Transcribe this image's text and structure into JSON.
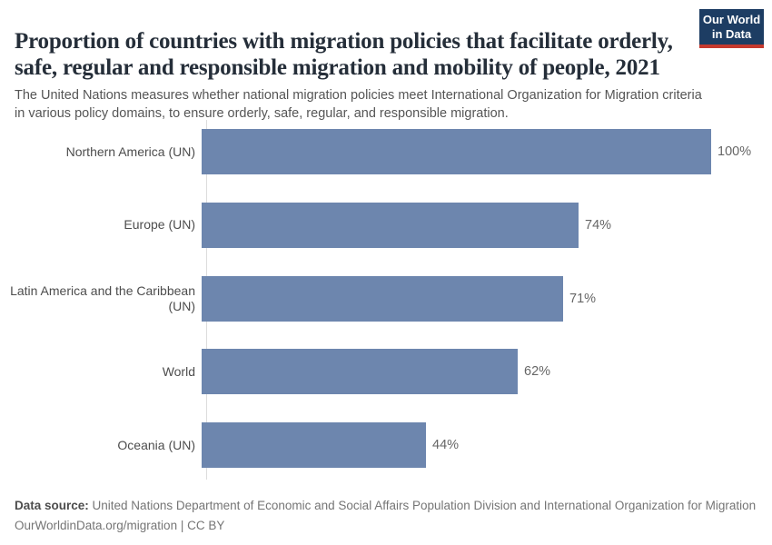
{
  "header": {
    "title": "Proportion of countries with migration policies that facilitate orderly, safe, regular and responsible migration and mobility of people, 2021",
    "subtitle": "The United Nations measures whether national migration policies meet International Organization for Migration criteria in various policy domains, to ensure orderly, safe, regular, and responsible migration.",
    "logo": {
      "line1": "Our World",
      "line2": "in Data",
      "background_color": "#1d3d63",
      "accent_color": "#c5392e"
    }
  },
  "chart_data": {
    "type": "bar",
    "orientation": "horizontal",
    "title": "Proportion of countries with migration policies that facilitate orderly, safe, regular and responsible migration and mobility of people, 2021",
    "categories": [
      "Northern America (UN)",
      "Europe (UN)",
      "Latin America and the Caribbean (UN)",
      "World",
      "Oceania (UN)"
    ],
    "values": [
      100,
      74,
      71,
      62,
      44
    ],
    "value_labels": [
      "100%",
      "74%",
      "71%",
      "62%",
      "44%"
    ],
    "xlabel": "",
    "ylabel": "",
    "xlim": [
      0,
      100
    ],
    "grid": false,
    "legend": "none",
    "bar_color": "#6d86ae",
    "axis_line_color": "#dddddd"
  },
  "footer": {
    "datasource_label": "Data source:",
    "datasource_text": " United Nations Department of Economic and Social Affairs Population Division and International Organization for Migration",
    "license_line": "OurWorldinData.org/migration | CC BY"
  }
}
